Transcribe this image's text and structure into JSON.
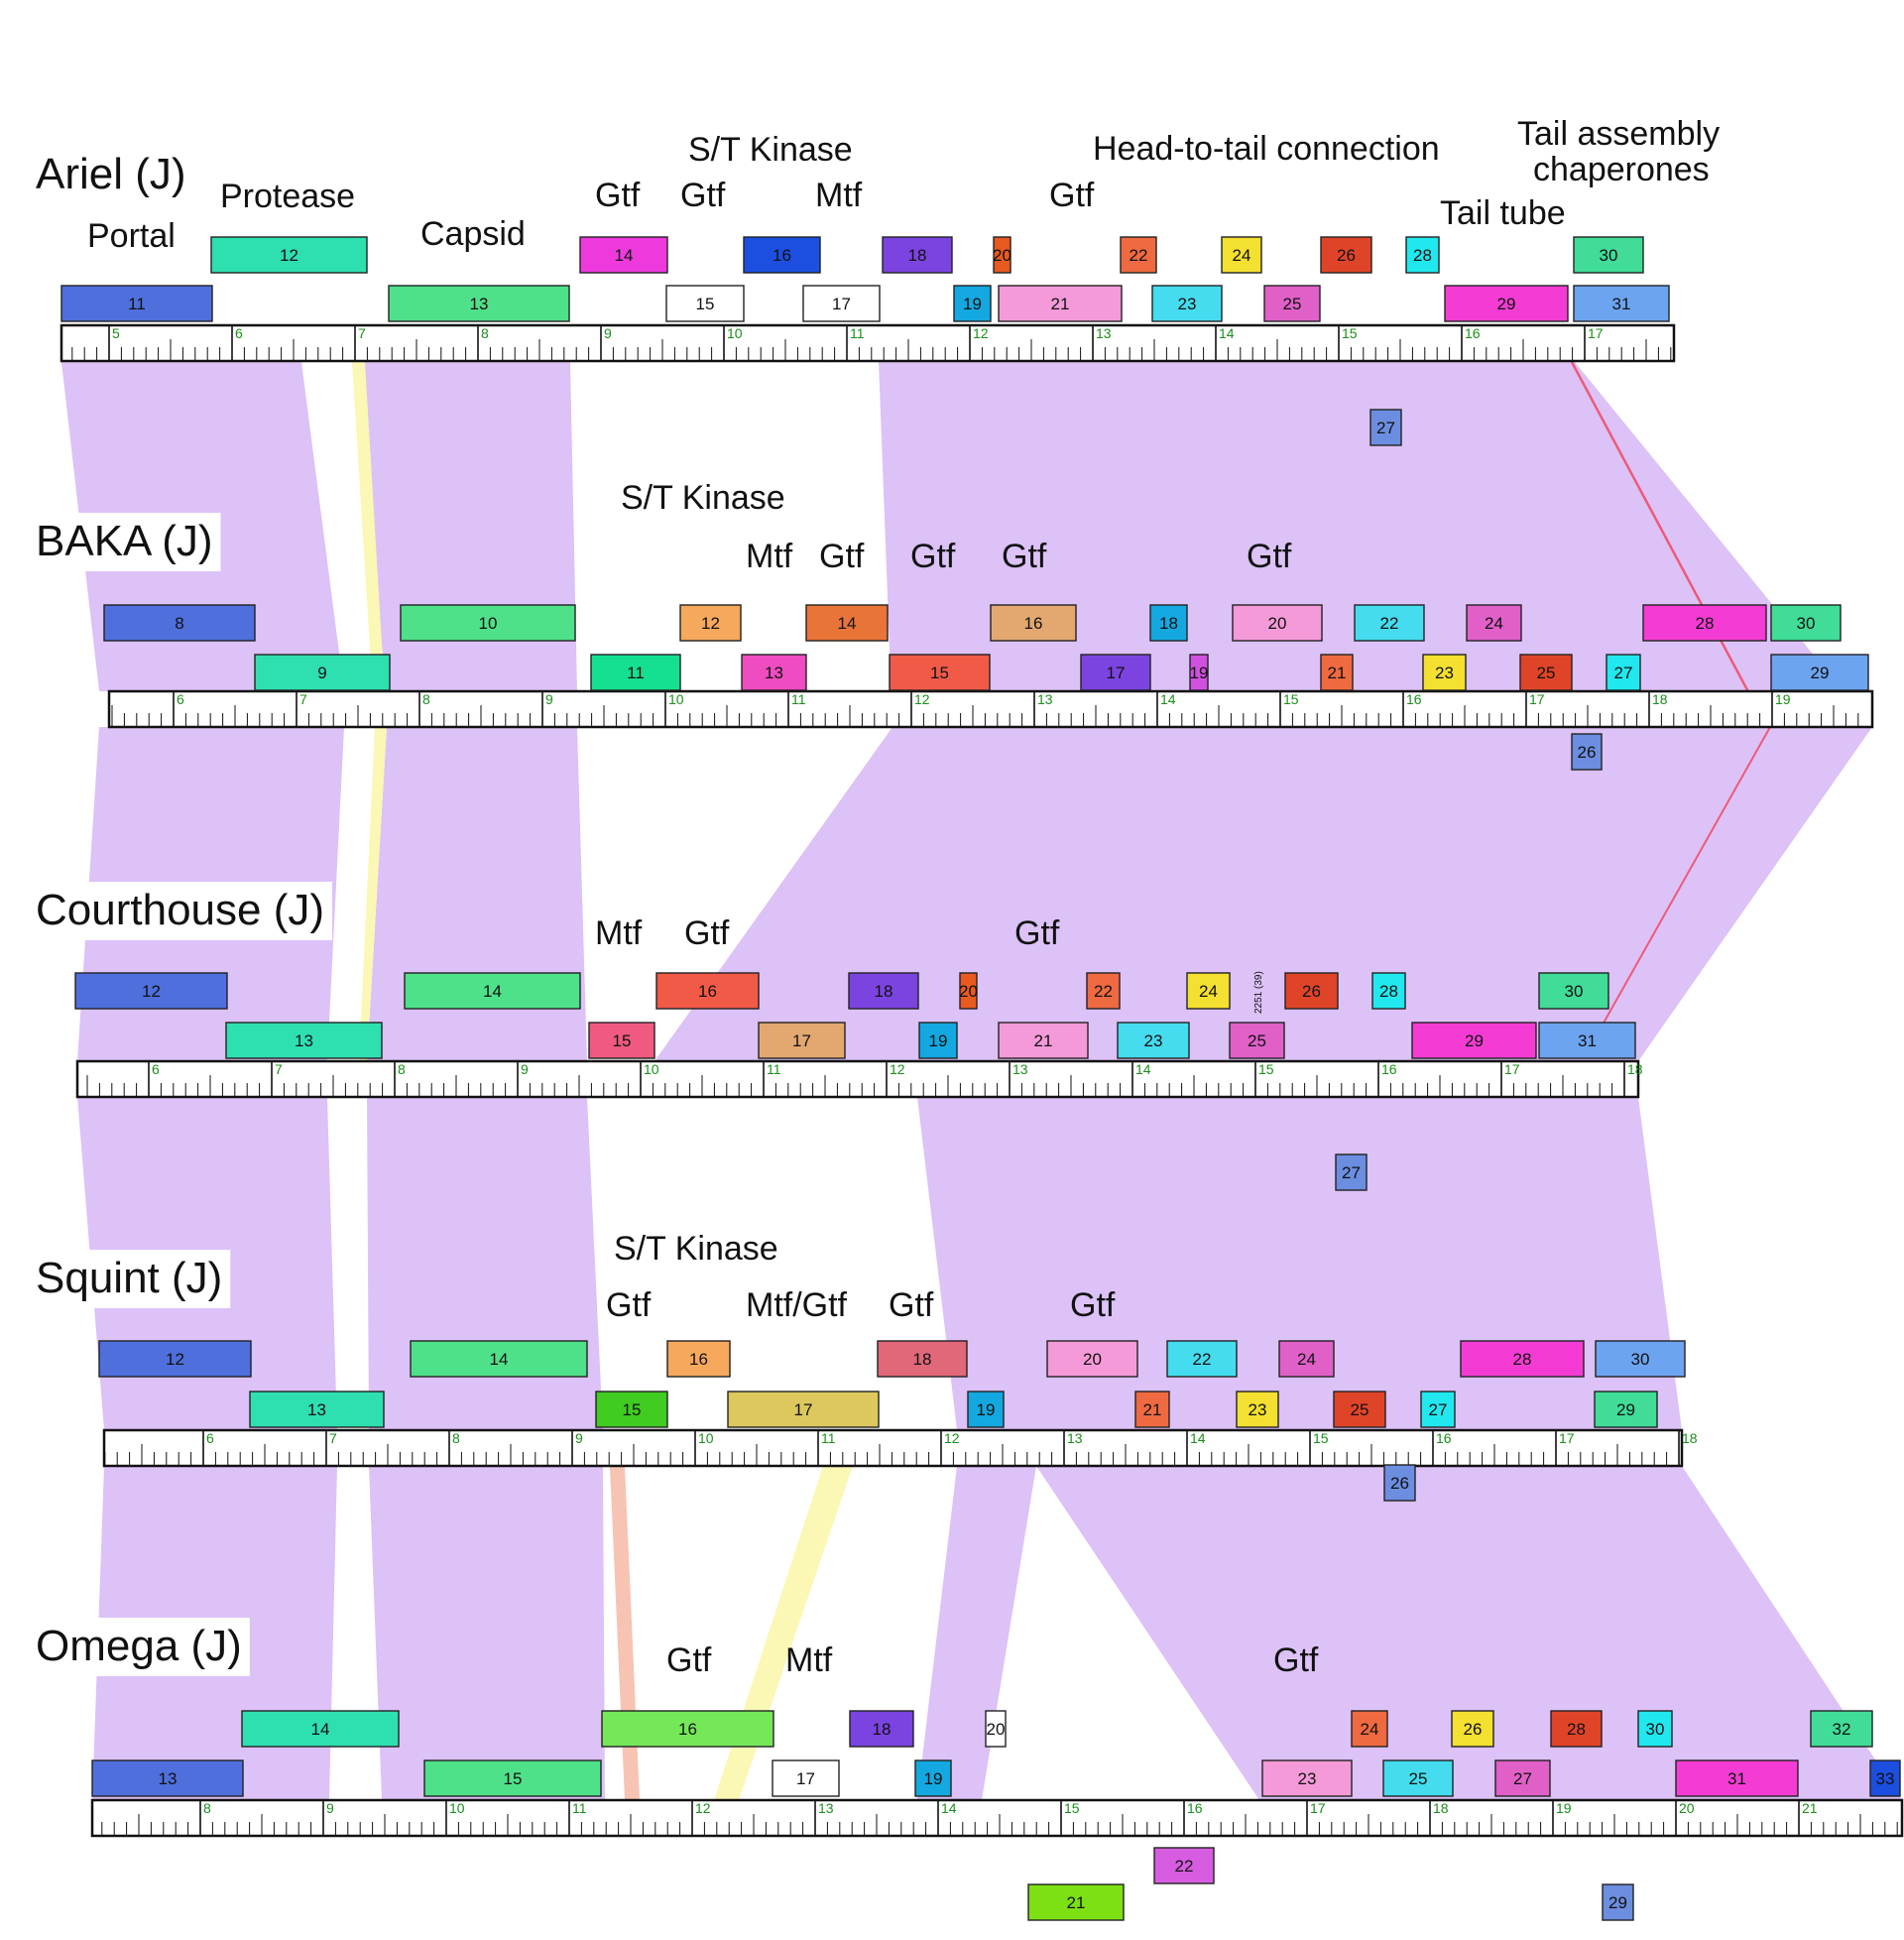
{
  "colors": {
    "similarity": "#dcc2f7",
    "yellow_link": "#fbf7b4",
    "salmon_link": "#f7c3b3",
    "red_link": "#ee5a78"
  },
  "ticks": {
    "Ariel": {
      "first_kbp": 5,
      "last_kbp": 17
    },
    "BAKA": {
      "first_kbp": 6,
      "last_kbp": 19
    },
    "Courthouse": {
      "first_kbp": 6,
      "last_kbp": 18
    },
    "Squint": {
      "first_kbp": 6,
      "last_kbp": 18
    },
    "Omega": {
      "first_kbp": 8,
      "last_kbp": 21
    }
  },
  "phages": [
    {
      "key": "Ariel",
      "name": "Ariel (J)",
      "functions": [
        {
          "text": "Portal"
        },
        {
          "text": "Protease"
        },
        {
          "text": "Capsid"
        },
        {
          "text": "Gtf"
        },
        {
          "text": "Gtf"
        },
        {
          "text": "S/T Kinase"
        },
        {
          "text": "Mtf"
        },
        {
          "text": "Gtf"
        },
        {
          "text": "Head-to-tail connection"
        },
        {
          "text": "Tail assembly"
        },
        {
          "text": "chaperones"
        },
        {
          "text": "Tail tube"
        }
      ],
      "genes": [
        {
          "num": "11",
          "color": "#4f6fdc"
        },
        {
          "num": "12",
          "color": "#2ee0b0"
        },
        {
          "num": "13",
          "color": "#4fe08a"
        },
        {
          "num": "14",
          "color": "#ee3adc"
        },
        {
          "num": "15",
          "color": "#ffffff"
        },
        {
          "num": "16",
          "color": "#1c4fe0"
        },
        {
          "num": "17",
          "color": "#ffffff"
        },
        {
          "num": "18",
          "color": "#7b44e0"
        },
        {
          "num": "19",
          "color": "#14a8e0"
        },
        {
          "num": "20",
          "color": "#e85a20"
        },
        {
          "num": "21",
          "color": "#f59ad8"
        },
        {
          "num": "22",
          "color": "#ef6a40"
        },
        {
          "num": "23",
          "color": "#44dcee"
        },
        {
          "num": "24",
          "color": "#f4e030"
        },
        {
          "num": "25",
          "color": "#e060c8"
        },
        {
          "num": "26",
          "color": "#e04428"
        },
        {
          "num": "27",
          "color": "#6c8ee0"
        },
        {
          "num": "28",
          "color": "#20e8ee"
        },
        {
          "num": "29",
          "color": "#f43cd4"
        },
        {
          "num": "30",
          "color": "#40dc98"
        },
        {
          "num": "31",
          "color": "#6ca4f0"
        }
      ]
    },
    {
      "key": "BAKA",
      "name": "BAKA (J)",
      "functions": [
        {
          "text": "S/T Kinase"
        },
        {
          "text": "Mtf"
        },
        {
          "text": "Gtf"
        },
        {
          "text": "Gtf"
        },
        {
          "text": "Gtf"
        },
        {
          "text": "Gtf"
        }
      ],
      "genes": [
        {
          "num": "8",
          "color": "#4f6fdc"
        },
        {
          "num": "9",
          "color": "#2ee0b0"
        },
        {
          "num": "10",
          "color": "#4fe08a"
        },
        {
          "num": "11",
          "color": "#14e090"
        },
        {
          "num": "12",
          "color": "#f6a85c"
        },
        {
          "num": "13",
          "color": "#ee4cc0"
        },
        {
          "num": "14",
          "color": "#e87438"
        },
        {
          "num": "15",
          "color": "#f25a48"
        },
        {
          "num": "16",
          "color": "#e2a870"
        },
        {
          "num": "17",
          "color": "#7b44e0"
        },
        {
          "num": "18",
          "color": "#14a8e0"
        },
        {
          "num": "19",
          "color": "#d050e0"
        },
        {
          "num": "20",
          "color": "#f59ad8"
        },
        {
          "num": "21",
          "color": "#ef6a40"
        },
        {
          "num": "22",
          "color": "#44dcee"
        },
        {
          "num": "23",
          "color": "#f4e030"
        },
        {
          "num": "24",
          "color": "#e060c8"
        },
        {
          "num": "25",
          "color": "#e04428"
        },
        {
          "num": "26",
          "color": "#6c8ee0"
        },
        {
          "num": "27",
          "color": "#20e8ee"
        },
        {
          "num": "28",
          "color": "#f43cd4"
        },
        {
          "num": "29",
          "color": "#6ca4f0"
        },
        {
          "num": "30",
          "color": "#40dc98"
        }
      ]
    },
    {
      "key": "Courthouse",
      "name": "Courthouse (J)",
      "functions": [
        {
          "text": "Mtf"
        },
        {
          "text": "Gtf"
        },
        {
          "text": "Gtf"
        }
      ],
      "genes": [
        {
          "num": "12",
          "color": "#4f6fdc"
        },
        {
          "num": "13",
          "color": "#2ee0b0"
        },
        {
          "num": "14",
          "color": "#4fe08a"
        },
        {
          "num": "15",
          "color": "#f05a80"
        },
        {
          "num": "16",
          "color": "#f25a48"
        },
        {
          "num": "17",
          "color": "#e2a870"
        },
        {
          "num": "18",
          "color": "#7b44e0"
        },
        {
          "num": "19",
          "color": "#14a8e0"
        },
        {
          "num": "20",
          "color": "#e85a20"
        },
        {
          "num": "21",
          "color": "#f59ad8"
        },
        {
          "num": "22",
          "color": "#ef6a40"
        },
        {
          "num": "23",
          "color": "#44dcee"
        },
        {
          "num": "24",
          "color": "#f4e030"
        },
        {
          "num": "25",
          "color": "#e060c8"
        },
        {
          "num": "26",
          "color": "#e04428"
        },
        {
          "num": "27",
          "color": "#6c8ee0"
        },
        {
          "num": "28",
          "color": "#20e8ee"
        },
        {
          "num": "29",
          "color": "#f43cd4"
        },
        {
          "num": "30",
          "color": "#40dc98"
        },
        {
          "num": "31",
          "color": "#6ca4f0"
        }
      ],
      "side_label": "2251 (39)"
    },
    {
      "key": "Squint",
      "name": "Squint (J)",
      "functions": [
        {
          "text": "S/T Kinase"
        },
        {
          "text": "Gtf"
        },
        {
          "text": "Mtf/Gtf"
        },
        {
          "text": "Gtf"
        },
        {
          "text": "Gtf"
        }
      ],
      "genes": [
        {
          "num": "12",
          "color": "#4f6fdc"
        },
        {
          "num": "13",
          "color": "#2ee0b0"
        },
        {
          "num": "14",
          "color": "#4fe08a"
        },
        {
          "num": "15",
          "color": "#40cc20"
        },
        {
          "num": "16",
          "color": "#f6a85c"
        },
        {
          "num": "17",
          "color": "#dcc85c"
        },
        {
          "num": "18",
          "color": "#e06878"
        },
        {
          "num": "19",
          "color": "#14a8e0"
        },
        {
          "num": "20",
          "color": "#f59ad8"
        },
        {
          "num": "21",
          "color": "#ef6a40"
        },
        {
          "num": "22",
          "color": "#44dcee"
        },
        {
          "num": "23",
          "color": "#f4e030"
        },
        {
          "num": "24",
          "color": "#e060c8"
        },
        {
          "num": "25",
          "color": "#e04428"
        },
        {
          "num": "26",
          "color": "#6c8ee0"
        },
        {
          "num": "27",
          "color": "#20e8ee"
        },
        {
          "num": "28",
          "color": "#f43cd4"
        },
        {
          "num": "29",
          "color": "#40dc98"
        },
        {
          "num": "30",
          "color": "#6ca4f0"
        }
      ]
    },
    {
      "key": "Omega",
      "name": "Omega (J)",
      "functions": [
        {
          "text": "Gtf"
        },
        {
          "text": "Mtf"
        },
        {
          "text": "Gtf"
        }
      ],
      "genes": [
        {
          "num": "13",
          "color": "#4f6fdc"
        },
        {
          "num": "14",
          "color": "#2ee0b0"
        },
        {
          "num": "15",
          "color": "#4fe08a"
        },
        {
          "num": "16",
          "color": "#74e858"
        },
        {
          "num": "17",
          "color": "#ffffff"
        },
        {
          "num": "18",
          "color": "#7b44e0"
        },
        {
          "num": "19",
          "color": "#14a8e0"
        },
        {
          "num": "20",
          "color": "#ffffff"
        },
        {
          "num": "21",
          "color": "#7ce014"
        },
        {
          "num": "22",
          "color": "#d65ce0"
        },
        {
          "num": "23",
          "color": "#f59ad8"
        },
        {
          "num": "24",
          "color": "#ef6a40"
        },
        {
          "num": "25",
          "color": "#44dcee"
        },
        {
          "num": "26",
          "color": "#f4e030"
        },
        {
          "num": "27",
          "color": "#e060c8"
        },
        {
          "num": "28",
          "color": "#e04428"
        },
        {
          "num": "29",
          "color": "#6c8ee0"
        },
        {
          "num": "30",
          "color": "#20e8ee"
        },
        {
          "num": "31",
          "color": "#f43cd4"
        },
        {
          "num": "32",
          "color": "#40dc98"
        },
        {
          "num": "33",
          "color": "#1c4fe0"
        }
      ]
    }
  ]
}
